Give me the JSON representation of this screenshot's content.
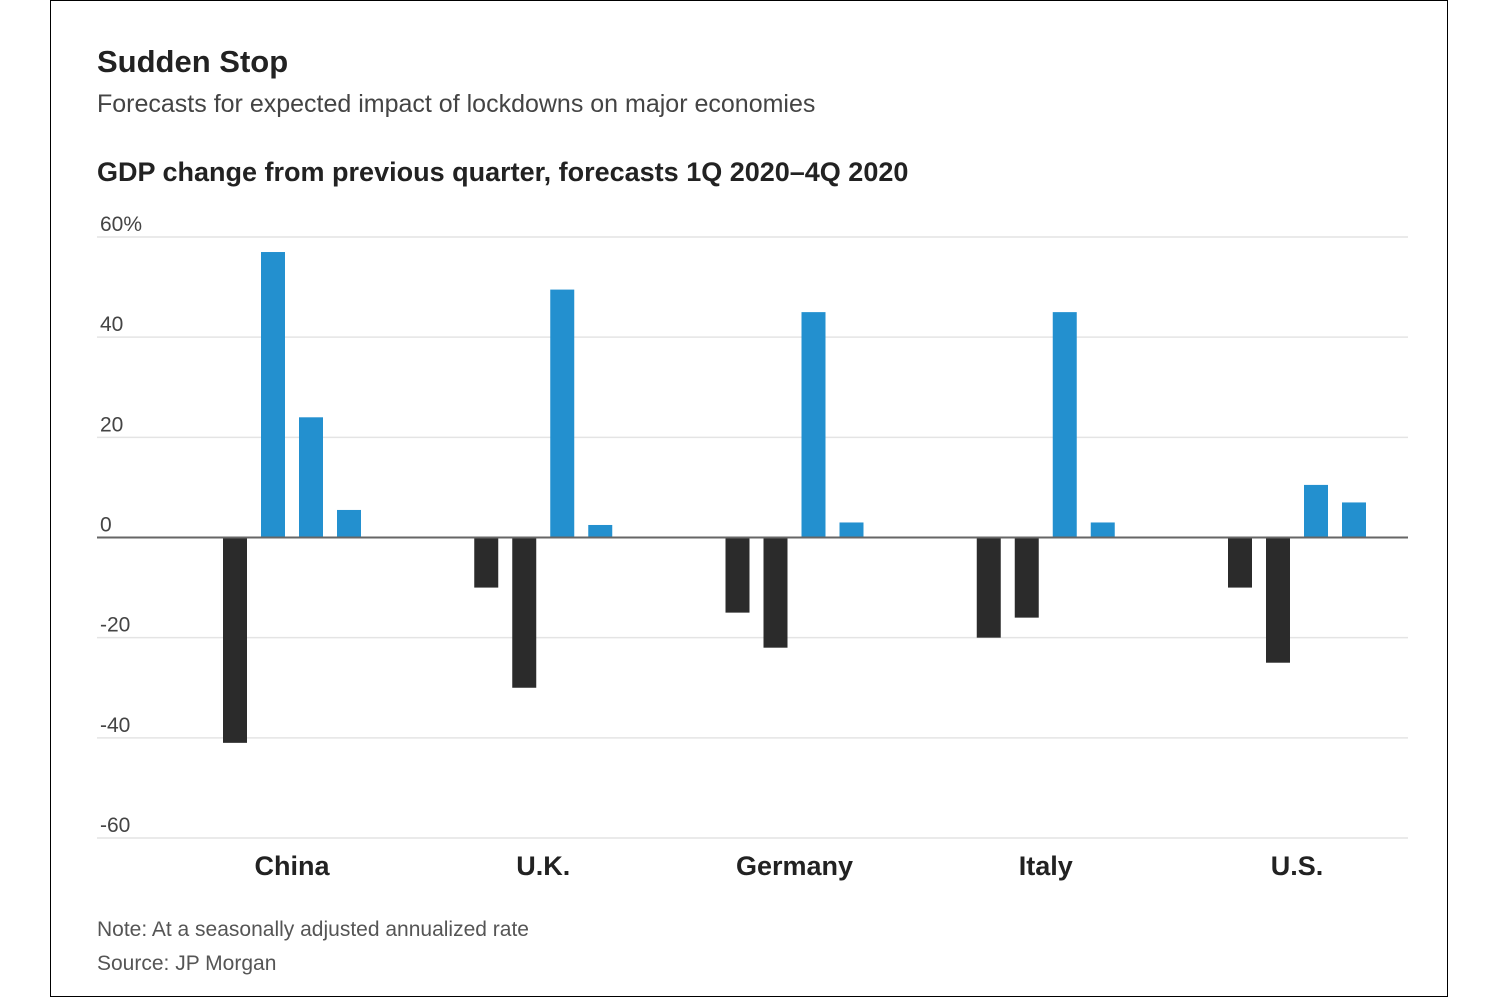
{
  "header": {
    "title": "Sudden Stop",
    "subtitle": "Forecasts for expected impact of lockdowns on major economies",
    "chart_heading": "GDP change from previous quarter, forecasts 1Q 2020–4Q 2020"
  },
  "footer": {
    "note": "Note: At a seasonally adjusted annualized rate",
    "source": "Source: JP Morgan"
  },
  "chart_data": {
    "type": "bar",
    "title": "GDP change from previous quarter, forecasts 1Q 2020–4Q 2020",
    "xlabel": "",
    "ylabel": "",
    "categories": [
      "China",
      "U.K.",
      "Germany",
      "Italy",
      "U.S."
    ],
    "series": [
      {
        "values": [
          -41,
          -10,
          -15,
          -20,
          -10
        ]
      },
      {
        "values": [
          57,
          -30,
          -22,
          -16,
          -25
        ]
      },
      {
        "values": [
          24,
          49.5,
          45,
          45,
          10.5
        ]
      },
      {
        "values": [
          5.5,
          2.5,
          3,
          3,
          7
        ]
      }
    ],
    "ylim": [
      -60,
      60
    ],
    "yticks": [
      60,
      40,
      20,
      0,
      -20,
      -40,
      -60
    ],
    "ytick_labels": [
      "60%",
      "40",
      "20",
      "0",
      "-20",
      "-40",
      "-60"
    ],
    "grid": true,
    "legend": "none",
    "colors": {
      "negative": "#2b2b2b",
      "positive": "#2390cf",
      "grid": "#e4e4e4",
      "zero_line": "#666666"
    }
  }
}
